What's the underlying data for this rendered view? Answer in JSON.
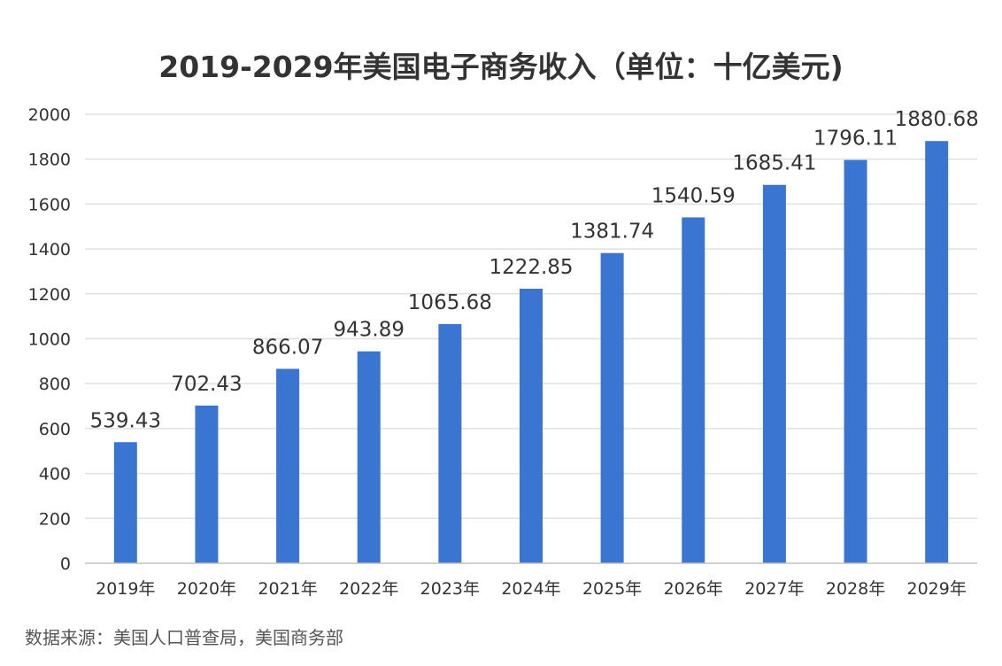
{
  "chart_data": {
    "type": "bar",
    "title": "2019-2029年美国电子商务收入（单位：十亿美元)",
    "categories": [
      "2019年",
      "2020年",
      "2021年",
      "2022年",
      "2023年",
      "2024年",
      "2025年",
      "2026年",
      "2027年",
      "2028年",
      "2029年"
    ],
    "values": [
      539.43,
      702.43,
      866.07,
      943.89,
      1065.68,
      1222.85,
      1381.74,
      1540.59,
      1685.41,
      1796.11,
      1880.68
    ],
    "data_labels": [
      "539.43",
      "702.43",
      "866.07",
      "943.89",
      "1065.68",
      "1222.85",
      "1381.74",
      "1540.59",
      "1685.41",
      "1796.11",
      "1880.68"
    ],
    "xlabel": "",
    "ylabel": "",
    "ylim": [
      0,
      2000
    ],
    "yticks": [
      "0",
      "200",
      "400",
      "600",
      "800",
      "1000",
      "1200",
      "1400",
      "1600",
      "1800",
      "2000"
    ],
    "grid": true,
    "legend": "none",
    "bar_color": "#3a75d1",
    "grid_color": "#e0e0e0",
    "axis_color": "#c0c0c0",
    "text_color": "#333333",
    "source": "数据来源：美国人口普查局，美国商务部"
  }
}
